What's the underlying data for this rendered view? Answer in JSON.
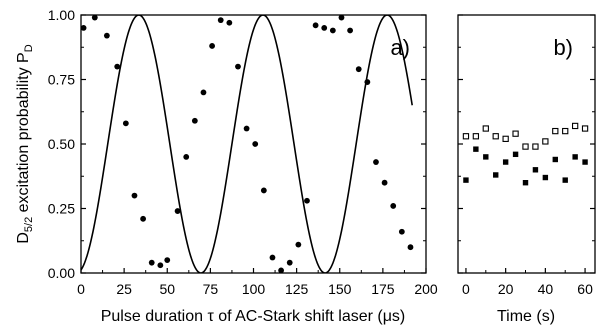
{
  "chart_data": [
    {
      "type": "scatter",
      "panel_label": "a)",
      "xlabel": "Pulse duration τ of AC-Stark shift laser (μs)",
      "ylabel": {
        "main": "D",
        "sub": "5/2",
        "rest": " excitation probability P",
        "rest_sub": "D"
      },
      "xlim": [
        0,
        200
      ],
      "ylim": [
        0,
        1
      ],
      "xticks": [
        "0",
        "25",
        "50",
        "75",
        "100",
        "125",
        "150",
        "175",
        "200"
      ],
      "xtick_values": [
        0,
        25,
        50,
        75,
        100,
        125,
        150,
        175,
        200
      ],
      "yticks": [
        "0.00",
        "0.25",
        "0.50",
        "0.75",
        "1.00"
      ],
      "ytick_values": [
        0,
        0.25,
        0.5,
        0.75,
        1.0
      ],
      "grid": false,
      "series": [
        {
          "type": "scatter",
          "marker": "filled-circle",
          "color": "#000000",
          "x": [
            1.5,
            8,
            15,
            21,
            26,
            31,
            36,
            41,
            46,
            50,
            56,
            61,
            66,
            71,
            76,
            81,
            86,
            91,
            96,
            101,
            106,
            111,
            116,
            121,
            126,
            131,
            136,
            141,
            146,
            151,
            156,
            161,
            166,
            171,
            176,
            181,
            186,
            191
          ],
          "y": [
            0.95,
            0.99,
            0.92,
            0.8,
            0.58,
            0.3,
            0.21,
            0.04,
            0.03,
            0.05,
            0.24,
            0.45,
            0.59,
            0.7,
            0.88,
            0.98,
            0.97,
            0.8,
            0.56,
            0.5,
            0.32,
            0.06,
            0.01,
            0.04,
            0.11,
            0.28,
            0.96,
            0.95,
            0.94,
            0.99,
            0.94,
            0.79,
            0.74,
            0.43,
            0.35,
            0.26,
            0.16,
            0.1
          ]
        },
        {
          "type": "line",
          "style": "solid",
          "color": "#000000",
          "model": "0.5 - 0.5*cos(2*pi*(t+2.5)/72)",
          "period": 72,
          "phase_offset": 2.5,
          "x_range": [
            0,
            192
          ]
        }
      ]
    },
    {
      "type": "scatter",
      "panel_label": "b)",
      "xlabel": "Time (s)",
      "xlim": [
        -4,
        65
      ],
      "ylim": [
        0,
        1
      ],
      "xticks": [
        "0",
        "20",
        "40",
        "60"
      ],
      "xtick_values": [
        0,
        20,
        40,
        60
      ],
      "grid": false,
      "series": [
        {
          "type": "scatter",
          "marker": "open-square",
          "color": "#000000",
          "x": [
            0,
            5,
            10,
            15,
            20,
            25,
            30,
            35,
            40,
            45,
            50,
            55,
            60
          ],
          "y": [
            0.53,
            0.53,
            0.56,
            0.53,
            0.52,
            0.54,
            0.49,
            0.49,
            0.51,
            0.55,
            0.55,
            0.57,
            0.56
          ]
        },
        {
          "type": "scatter",
          "marker": "filled-square",
          "color": "#000000",
          "x": [
            0,
            5,
            10,
            15,
            20,
            25,
            30,
            35,
            40,
            45,
            50,
            55,
            60
          ],
          "y": [
            0.36,
            0.48,
            0.45,
            0.38,
            0.43,
            0.46,
            0.35,
            0.4,
            0.37,
            0.44,
            0.36,
            0.45,
            0.43
          ]
        }
      ]
    }
  ]
}
